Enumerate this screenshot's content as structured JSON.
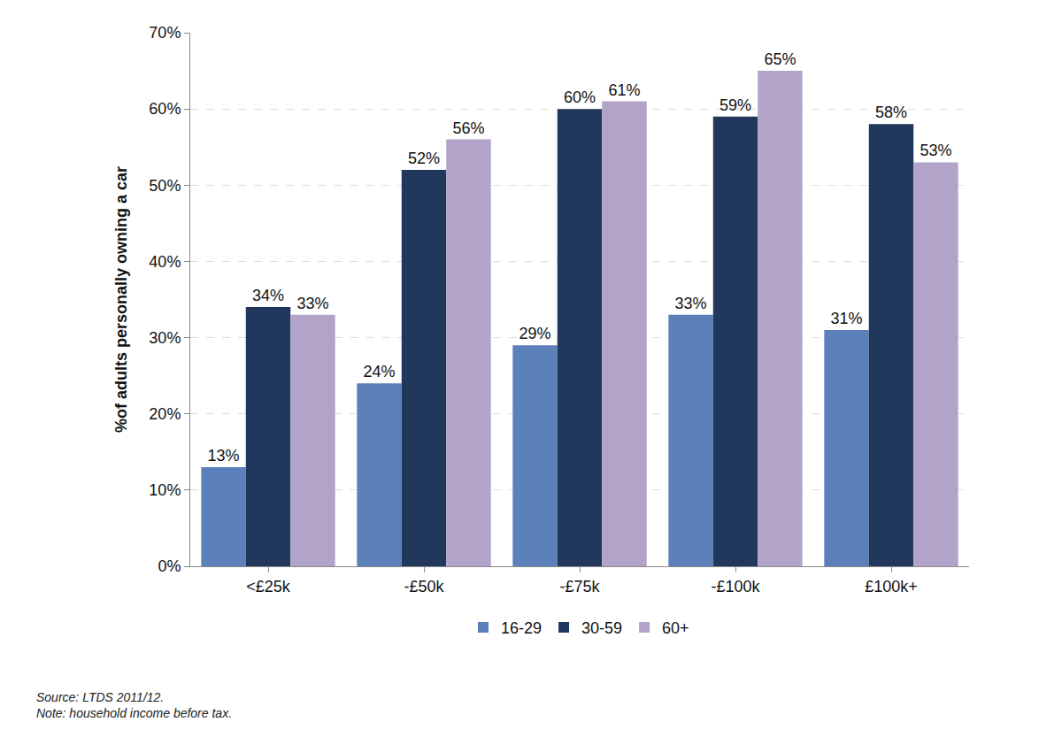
{
  "chart_data": {
    "type": "bar",
    "y_label": "%of adults personally owning a car",
    "annotations": [
      "Source: LTDS 2011/12.",
      "Note: household income before tax."
    ],
    "categories": [
      "<£25k",
      "-£50k",
      "-£75k",
      "-£100k",
      "£100k+"
    ],
    "series": [
      {
        "name": "16-29",
        "color": "#5b80ba",
        "values": [
          13,
          24,
          29,
          33,
          31
        ],
        "value_labels": [
          "13%",
          "24%",
          "29%",
          "33%",
          "31%"
        ]
      },
      {
        "name": "30-59",
        "color": "#21385c",
        "values": [
          34,
          52,
          60,
          59,
          58
        ],
        "value_labels": [
          "34%",
          "52%",
          "60%",
          "59%",
          "58%"
        ]
      },
      {
        "name": "60+",
        "color": "#b2a4c9",
        "values": [
          33,
          56,
          61,
          65,
          53
        ],
        "value_labels": [
          "33%",
          "56%",
          "61%",
          "65%",
          "53%"
        ]
      }
    ],
    "ylim": [
      0,
      70
    ],
    "yticks": [
      {
        "value": 0,
        "label": "0%"
      },
      {
        "value": 10,
        "label": "10%"
      },
      {
        "value": 20,
        "label": "20%"
      },
      {
        "value": 30,
        "label": "30%"
      },
      {
        "value": 40,
        "label": "40%"
      },
      {
        "value": 50,
        "label": "50%"
      },
      {
        "value": 60,
        "label": "60%"
      },
      {
        "value": 70,
        "label": "70%"
      }
    ],
    "grid": true,
    "legend": "bottom",
    "data_labels": true
  }
}
